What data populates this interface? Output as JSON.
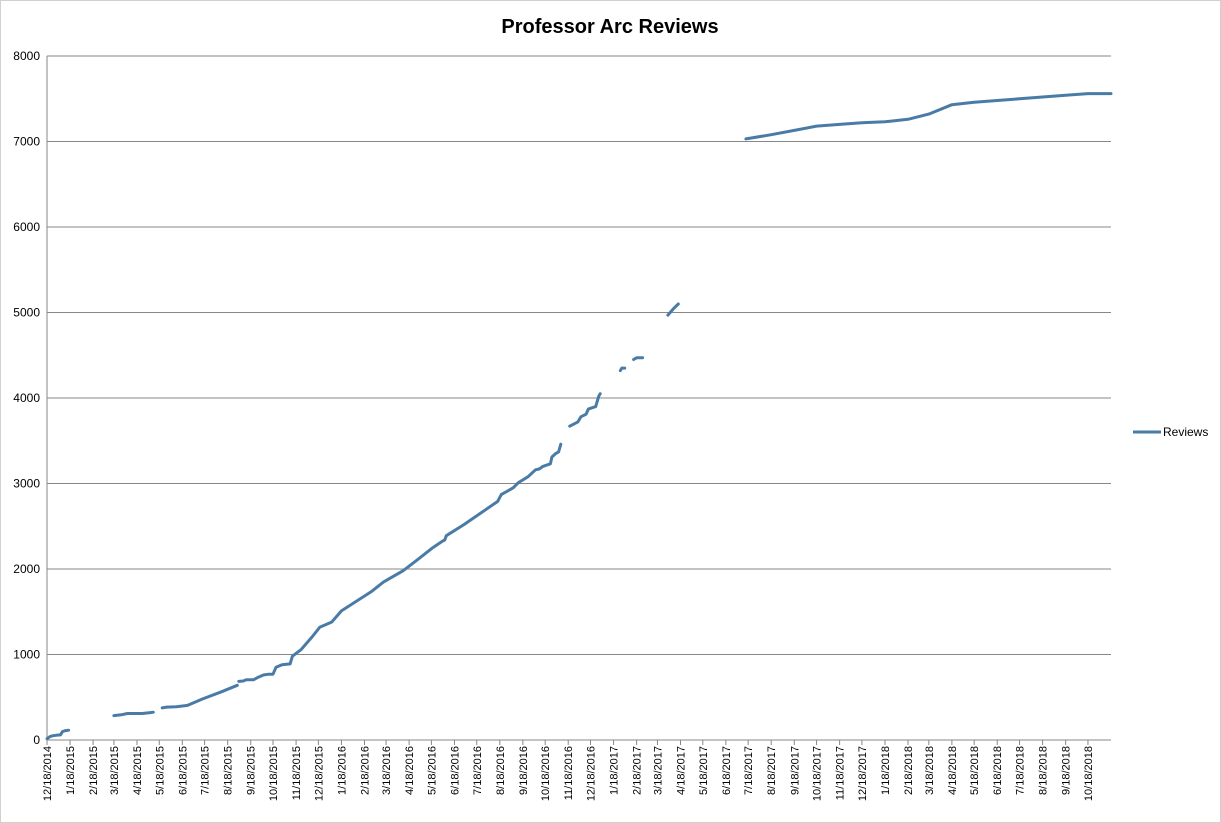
{
  "chart_data": {
    "type": "line",
    "title": "Professor Arc Reviews",
    "xlabel": "",
    "ylabel": "",
    "ylim": [
      0,
      8000
    ],
    "xlim": [
      "12/18/2014",
      "11/18/2018"
    ],
    "yticks": [
      "0",
      "1000",
      "2000",
      "3000",
      "4000",
      "5000",
      "6000",
      "7000",
      "8000"
    ],
    "xticks": [
      "12/18/2014",
      "1/18/2015",
      "2/18/2015",
      "3/18/2015",
      "4/18/2015",
      "5/18/2015",
      "6/18/2015",
      "7/18/2015",
      "8/18/2015",
      "9/18/2015",
      "10/18/2015",
      "11/18/2015",
      "12/18/2015",
      "1/18/2016",
      "2/18/2016",
      "3/18/2016",
      "4/18/2016",
      "5/18/2016",
      "6/18/2016",
      "7/18/2016",
      "8/18/2016",
      "9/18/2016",
      "10/18/2016",
      "11/18/2016",
      "12/18/2016",
      "1/18/2017",
      "2/18/2017",
      "3/18/2017",
      "4/18/2017",
      "5/18/2017",
      "6/18/2017",
      "7/18/2017",
      "8/18/2017",
      "9/18/2017",
      "10/18/2017",
      "11/18/2017",
      "12/18/2017",
      "1/18/2018",
      "2/18/2018",
      "3/18/2018",
      "4/18/2018",
      "5/18/2018",
      "6/18/2018",
      "7/18/2018",
      "8/18/2018",
      "9/18/2018",
      "10/18/2018"
    ],
    "grid": true,
    "legend_position": "right",
    "series_color": "#4a7ba7",
    "series": [
      {
        "name": "Reviews",
        "segments": [
          [
            [
              "12/18/2014",
              15
            ],
            [
              "12/22/2014",
              40
            ],
            [
              "12/26/2014",
              50
            ],
            [
              "12/30/2014",
              55
            ],
            [
              "1/5/2015",
              60
            ],
            [
              "1/8/2015",
              100
            ],
            [
              "1/12/2015",
              110
            ],
            [
              "1/16/2015",
              115
            ]
          ],
          [
            [
              "3/18/2015",
              285
            ],
            [
              "3/28/2015",
              295
            ],
            [
              "4/5/2015",
              310
            ],
            [
              "4/15/2015",
              310
            ],
            [
              "4/25/2015",
              310
            ],
            [
              "5/6/2015",
              320
            ],
            [
              "5/10/2015",
              325
            ]
          ],
          [
            [
              "5/22/2015",
              375
            ],
            [
              "5/28/2015",
              385
            ],
            [
              "6/10/2015",
              390
            ],
            [
              "6/25/2015",
              405
            ],
            [
              "7/15/2015",
              480
            ],
            [
              "8/10/2015",
              565
            ],
            [
              "8/31/2015",
              640
            ]
          ],
          [
            [
              "9/2/2015",
              685
            ],
            [
              "9/8/2015",
              690
            ],
            [
              "9/12/2015",
              705
            ],
            [
              "9/22/2015",
              705
            ],
            [
              "9/28/2015",
              735
            ],
            [
              "10/5/2015",
              760
            ],
            [
              "10/12/2015",
              770
            ],
            [
              "10/18/2015",
              770
            ],
            [
              "10/22/2015",
              850
            ],
            [
              "10/30/2015",
              880
            ],
            [
              "11/10/2015",
              890
            ],
            [
              "11/13/2015",
              980
            ],
            [
              "11/25/2015",
              1060
            ],
            [
              "12/10/2015",
              1210
            ],
            [
              "12/20/2015",
              1320
            ],
            [
              "12/28/2015",
              1350
            ],
            [
              "1/5/2016",
              1380
            ],
            [
              "1/18/2016",
              1510
            ],
            [
              "2/5/2016",
              1610
            ],
            [
              "2/28/2016",
              1740
            ],
            [
              "3/15/2016",
              1850
            ],
            [
              "4/10/2016",
              1980
            ],
            [
              "5/1/2016",
              2120
            ],
            [
              "5/20/2016",
              2250
            ],
            [
              "6/1/2016",
              2320
            ],
            [
              "6/5/2016",
              2340
            ],
            [
              "6/7/2016",
              2390
            ],
            [
              "7/1/2016",
              2520
            ],
            [
              "8/10/2016",
              2760
            ],
            [
              "8/15/2016",
              2790
            ],
            [
              "8/20/2016",
              2870
            ],
            [
              "9/5/2016",
              2950
            ],
            [
              "9/12/2016",
              3010
            ],
            [
              "9/25/2016",
              3080
            ],
            [
              "10/5/2016",
              3160
            ],
            [
              "10/10/2016",
              3170
            ],
            [
              "10/15/2016",
              3200
            ],
            [
              "10/20/2016",
              3215
            ],
            [
              "10/25/2016",
              3230
            ],
            [
              "10/27/2016",
              3310
            ],
            [
              "11/1/2016",
              3350
            ],
            [
              "11/5/2016",
              3370
            ],
            [
              "11/8/2016",
              3460
            ]
          ],
          [
            [
              "11/20/2016",
              3670
            ],
            [
              "12/1/2016",
              3720
            ],
            [
              "12/5/2016",
              3780
            ],
            [
              "12/12/2016",
              3810
            ],
            [
              "12/15/2016",
              3870
            ],
            [
              "12/25/2016",
              3900
            ],
            [
              "12/29/2016",
              4020
            ],
            [
              "12/31/2016",
              4050
            ]
          ],
          [
            [
              "1/27/2017",
              4320
            ],
            [
              "1/29/2017",
              4350
            ],
            [
              "2/2/2017",
              4350
            ]
          ],
          [
            [
              "2/14/2017",
              4450
            ],
            [
              "2/18/2017",
              4470
            ],
            [
              "2/26/2017",
              4470
            ]
          ],
          [
            [
              "4/1/2017",
              4970
            ],
            [
              "4/8/2017",
              5040
            ],
            [
              "4/15/2017",
              5100
            ]
          ],
          [
            [
              "7/15/2017",
              7030
            ],
            [
              "8/18/2017",
              7080
            ],
            [
              "9/18/2017",
              7130
            ],
            [
              "10/18/2017",
              7180
            ],
            [
              "11/18/2017",
              7200
            ],
            [
              "12/18/2017",
              7220
            ],
            [
              "1/18/2018",
              7230
            ],
            [
              "2/18/2018",
              7260
            ],
            [
              "3/18/2018",
              7320
            ],
            [
              "4/18/2018",
              7430
            ],
            [
              "5/18/2018",
              7460
            ],
            [
              "6/18/2018",
              7480
            ],
            [
              "7/18/2018",
              7500
            ],
            [
              "8/18/2018",
              7520
            ],
            [
              "9/18/2018",
              7540
            ],
            [
              "10/18/2018",
              7560
            ],
            [
              "11/18/2018",
              7560
            ]
          ]
        ]
      }
    ]
  }
}
